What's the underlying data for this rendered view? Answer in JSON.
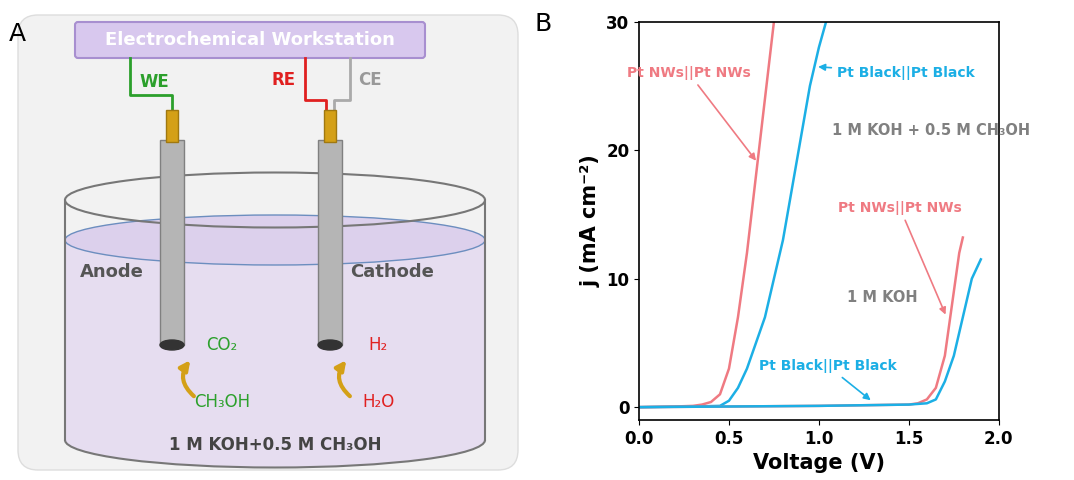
{
  "panel_a": {
    "label": "A",
    "workstation": "Electrochemical Workstation",
    "leads": {
      "working": "WE",
      "reference": "RE",
      "counter": "CE"
    },
    "electrodes": {
      "anode": "Anode",
      "cathode": "Cathode"
    },
    "anode_reaction": {
      "reactant": "CH₃OH",
      "product": "CO₂"
    },
    "cathode_reaction": {
      "reactant": "H₂O",
      "product": "H₂"
    },
    "electrolyte": "1 M KOH+0.5 M CH₃OH"
  },
  "chart_data": {
    "type": "line",
    "panel_label": "B",
    "x_label": "Voltage (V)",
    "y_label": "j (mA cm⁻²)",
    "xlim": [
      0,
      2
    ],
    "xticks": [
      {
        "value": 0,
        "label": "0.0"
      },
      0.5,
      {
        "value": 1,
        "label": "1.0"
      },
      1.5,
      {
        "value": 2,
        "label": "2.0"
      }
    ],
    "ylim": [
      -1,
      30
    ],
    "yticks": [
      0,
      10,
      20,
      30
    ],
    "grid": false,
    "annotations": [
      {
        "text": "1 M KOH + 0.5 M CH₃OH"
      },
      {
        "text": "1 M KOH"
      }
    ],
    "series": [
      {
        "name": "Pt NWs||Pt NWs",
        "color": "#EF7A82",
        "x": [
          0,
          0.2,
          0.3,
          0.35,
          0.4,
          0.45,
          0.5,
          0.55,
          0.6,
          0.65,
          0.7,
          0.75
        ],
        "values": [
          0,
          0.05,
          0.1,
          0.2,
          0.4,
          1.0,
          3.0,
          7.0,
          12.0,
          18.0,
          24.0,
          30.0
        ]
      },
      {
        "name": "Pt Black||Pt Black",
        "color": "#1CAFE5",
        "x": [
          0,
          0.3,
          0.45,
          0.5,
          0.55,
          0.6,
          0.7,
          0.8,
          0.85,
          0.9,
          0.95,
          1.0,
          1.04
        ],
        "values": [
          0,
          0.05,
          0.1,
          0.5,
          1.5,
          3.0,
          7.0,
          13.0,
          17.0,
          21.0,
          25.0,
          28.0,
          30.0
        ]
      },
      {
        "name": "Pt NWs||Pt NWs",
        "color": "#EF7A82",
        "x": [
          0,
          0.5,
          1.0,
          1.5,
          1.55,
          1.6,
          1.65,
          1.7,
          1.75,
          1.78,
          1.8
        ],
        "values": [
          0,
          0.05,
          0.1,
          0.2,
          0.3,
          0.6,
          1.5,
          4.0,
          9.0,
          12.0,
          13.2
        ]
      },
      {
        "name": "Pt Black||Pt Black",
        "color": "#1CAFE5",
        "x": [
          0,
          0.5,
          1.0,
          1.5,
          1.6,
          1.65,
          1.7,
          1.75,
          1.8,
          1.85,
          1.9
        ],
        "values": [
          0,
          0.05,
          0.1,
          0.2,
          0.3,
          0.6,
          2.0,
          4.0,
          7.0,
          10.0,
          11.5
        ]
      }
    ]
  }
}
